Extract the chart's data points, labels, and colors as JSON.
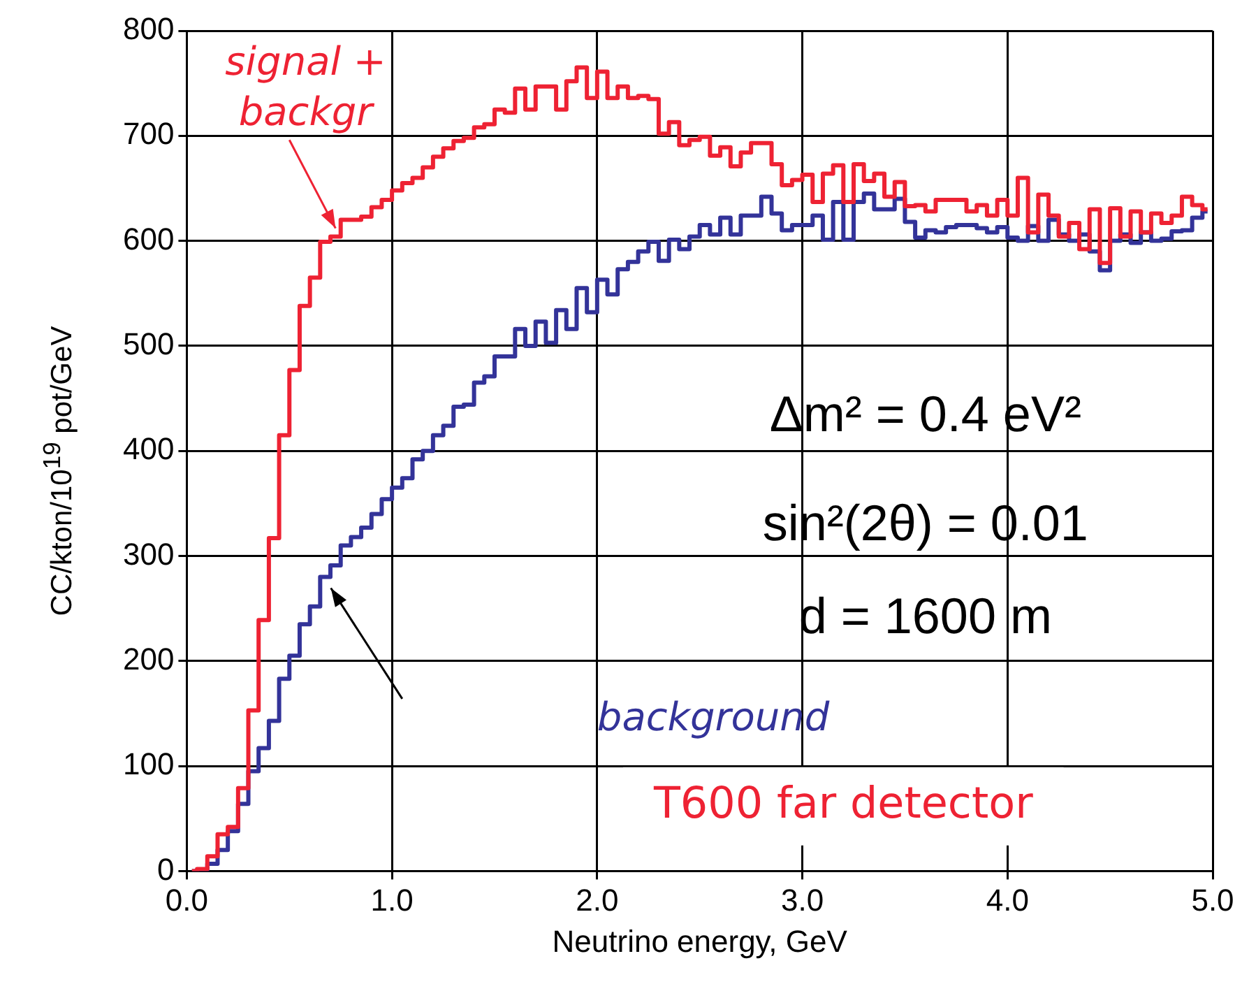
{
  "chart_data": {
    "type": "step",
    "xlabel": "Neutrino energy, GeV",
    "ylabel": "CC/kton/10$^{19}$ pot/GeV",
    "x": [
      0.025,
      0.075,
      0.125,
      0.175,
      0.225,
      0.275,
      0.325,
      0.375,
      0.425,
      0.475,
      0.525,
      0.575,
      0.625,
      0.675,
      0.725,
      0.775,
      0.825,
      0.875,
      0.925,
      0.975,
      1.025,
      1.075,
      1.125,
      1.175,
      1.225,
      1.275,
      1.325,
      1.375,
      1.425,
      1.475,
      1.525,
      1.575,
      1.625,
      1.675,
      1.725,
      1.775,
      1.825,
      1.875,
      1.925,
      1.975,
      2.025,
      2.075,
      2.125,
      2.175,
      2.225,
      2.275,
      2.325,
      2.375,
      2.425,
      2.475,
      2.525,
      2.575,
      2.625,
      2.675,
      2.725,
      2.775,
      2.825,
      2.875,
      2.925,
      2.975,
      3.025,
      3.075,
      3.125,
      3.175,
      3.225,
      3.275,
      3.325,
      3.375,
      3.425,
      3.475,
      3.525,
      3.575,
      3.625,
      3.675,
      3.725,
      3.775,
      3.825,
      3.875,
      3.925,
      3.975,
      4.025,
      4.075,
      4.125,
      4.175,
      4.225,
      4.275,
      4.325,
      4.375,
      4.425,
      4.475,
      4.525,
      4.575,
      4.625,
      4.675,
      4.725,
      4.775,
      4.825,
      4.875,
      4.925,
      4.975
    ],
    "series": [
      {
        "name": "signal + backgr",
        "color": "#ee2233",
        "values": [
          0,
          2,
          14,
          35,
          42,
          79,
          153,
          239,
          317,
          415,
          477,
          538,
          565,
          599,
          604,
          620,
          620,
          623,
          632,
          639,
          648,
          655,
          660,
          670,
          680,
          688,
          695,
          698,
          708,
          711,
          725,
          722,
          745,
          725,
          747,
          747,
          725,
          752,
          765,
          736,
          761,
          736,
          747,
          736,
          738,
          735,
          702,
          713,
          691,
          696,
          699,
          681,
          689,
          671,
          684,
          693,
          693,
          673,
          653,
          658,
          663,
          637,
          664,
          672,
          637,
          673,
          657,
          664,
          642,
          656,
          633,
          634,
          628,
          639,
          639,
          639,
          628,
          634,
          624,
          639,
          624,
          660,
          608,
          644,
          624,
          604,
          617,
          592,
          630,
          579,
          631,
          604,
          628,
          608,
          626,
          617,
          624,
          642,
          634,
          630
        ]
      },
      {
        "name": "background",
        "color": "#333399",
        "values": [
          0,
          0,
          7,
          20,
          38,
          64,
          95,
          117,
          143,
          183,
          205,
          235,
          252,
          280,
          291,
          310,
          318,
          327,
          340,
          354,
          365,
          374,
          392,
          400,
          415,
          424,
          442,
          444,
          465,
          471,
          490,
          490,
          516,
          500,
          523,
          503,
          534,
          516,
          555,
          532,
          563,
          549,
          573,
          580,
          590,
          599,
          581,
          601,
          592,
          604,
          615,
          606,
          622,
          606,
          624,
          624,
          642,
          626,
          610,
          615,
          615,
          624,
          601,
          637,
          601,
          637,
          645,
          630,
          630,
          640,
          618,
          603,
          610,
          608,
          613,
          615,
          615,
          612,
          608,
          613,
          603,
          600,
          614,
          600,
          620,
          606,
          600,
          606,
          590,
          572,
          600,
          606,
          598,
          608,
          600,
          602,
          609,
          610,
          622,
          628
        ]
      }
    ],
    "xlim": [
      0,
      5
    ],
    "xticks": [
      {
        "value": 0,
        "label": "0.0"
      },
      {
        "value": 1,
        "label": "1.0"
      },
      {
        "value": 2,
        "label": "2.0"
      },
      {
        "value": 3,
        "label": "3.0"
      },
      {
        "value": 4,
        "label": "4.0"
      },
      {
        "value": 5,
        "label": "5.0"
      }
    ],
    "ylim": [
      0,
      800
    ],
    "yticks": [
      0,
      100,
      200,
      300,
      400,
      500,
      600,
      700,
      800
    ],
    "grid": true,
    "legend": false,
    "annotations": [
      "Δm² = 0.4 eV²",
      "sin²(2θ) = 0.01",
      "d = 1600 m",
      "T600 far detector"
    ]
  }
}
